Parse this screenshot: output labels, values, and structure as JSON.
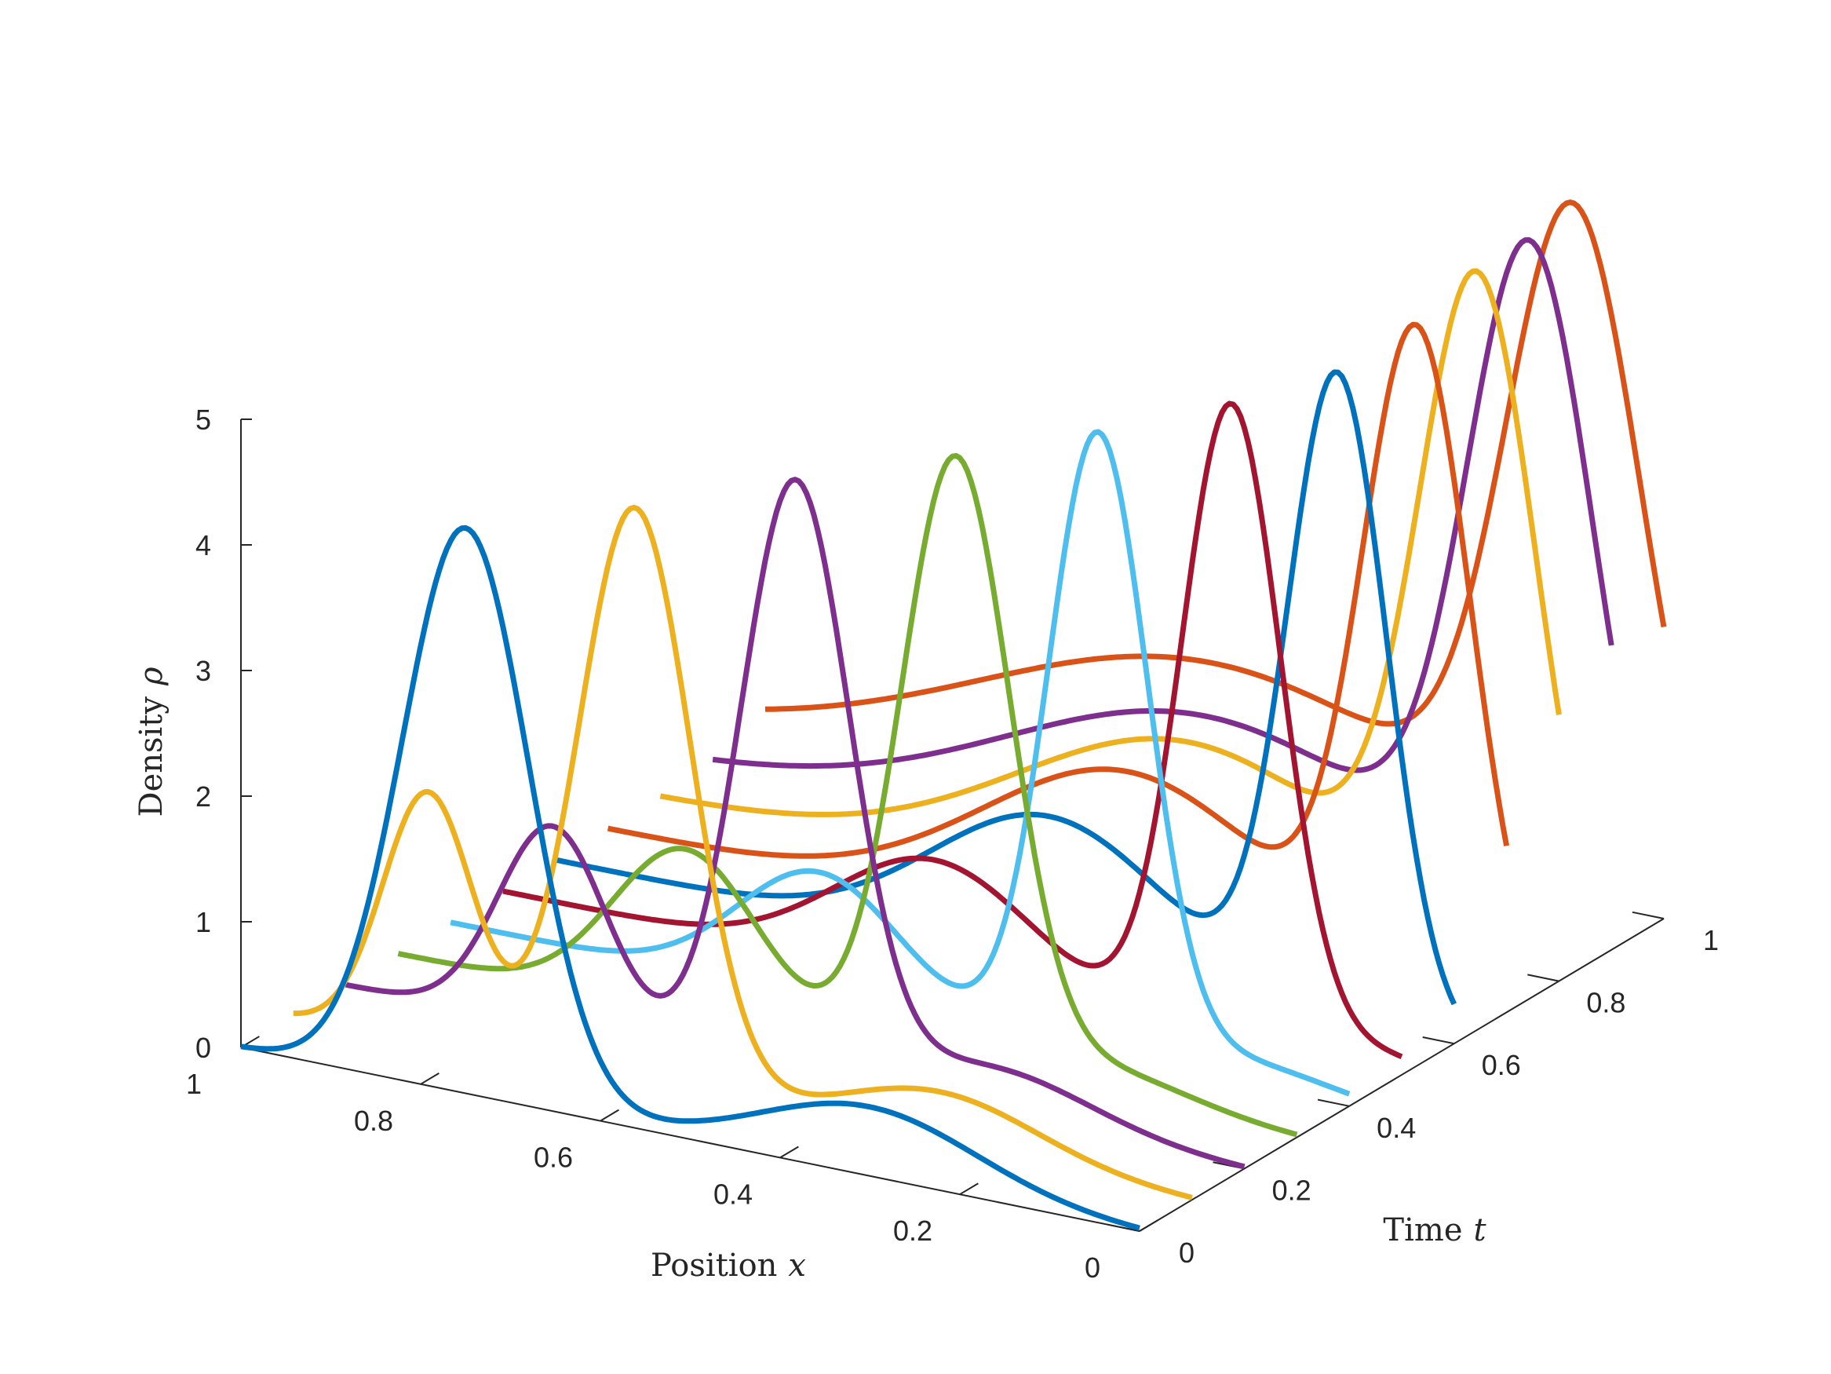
{
  "chart_data": {
    "type": "line",
    "subtype": "3d-waterfall",
    "title": "",
    "xlabel": "Position",
    "xlabel_var": "x",
    "ylabel": "Time",
    "ylabel_var": "t",
    "zlabel": "Density",
    "zlabel_var": "ρ",
    "xlim": [
      0,
      1
    ],
    "ylim": [
      0,
      1
    ],
    "zlim": [
      0,
      5
    ],
    "x_ticks": [
      "0",
      "0.2",
      "0.4",
      "0.6",
      "0.8",
      "1"
    ],
    "y_ticks": [
      "0",
      "0.2",
      "0.4",
      "0.6",
      "0.8",
      "1"
    ],
    "z_ticks": [
      "0",
      "1",
      "2",
      "3",
      "4",
      "5"
    ],
    "grid": false,
    "legend": "none",
    "colors": [
      "#0072BD",
      "#EDB120",
      "#7E2F8E",
      "#77AC30",
      "#4DBEEE",
      "#A2142F",
      "#0072BD",
      "#D95319",
      "#EDB120",
      "#7E2F8E",
      "#D95319"
    ],
    "series": [
      {
        "t": 0.0,
        "bumps": [
          {
            "a": 4.5,
            "mu": 0.75,
            "sigma": 0.07
          },
          {
            "a": 0.55,
            "mu": 0.3,
            "sigma": 0.12
          }
        ]
      },
      {
        "t": 0.1,
        "bumps": [
          {
            "a": 4.6,
            "mu": 0.62,
            "sigma": 0.062
          },
          {
            "a": 2.0,
            "mu": 0.85,
            "sigma": 0.05
          },
          {
            "a": 0.45,
            "mu": 0.28,
            "sigma": 0.11
          }
        ]
      },
      {
        "t": 0.2,
        "bumps": [
          {
            "a": 4.7,
            "mu": 0.5,
            "sigma": 0.06
          },
          {
            "a": 1.6,
            "mu": 0.77,
            "sigma": 0.06
          },
          {
            "a": 0.4,
            "mu": 0.28,
            "sigma": 0.11
          }
        ]
      },
      {
        "t": 0.3,
        "bumps": [
          {
            "a": 4.8,
            "mu": 0.38,
            "sigma": 0.06
          },
          {
            "a": 1.3,
            "mu": 0.68,
            "sigma": 0.08
          },
          {
            "a": 0.25,
            "mu": 0.22,
            "sigma": 0.1
          }
        ]
      },
      {
        "t": 0.4,
        "bumps": [
          {
            "a": 4.9,
            "mu": 0.28,
            "sigma": 0.055
          },
          {
            "a": 1.0,
            "mu": 0.59,
            "sigma": 0.09
          },
          {
            "a": 0.2,
            "mu": 0.12,
            "sigma": 0.1
          }
        ]
      },
      {
        "t": 0.5,
        "bumps": [
          {
            "a": 5.0,
            "mu": 0.19,
            "sigma": 0.055
          },
          {
            "a": 0.95,
            "mu": 0.52,
            "sigma": 0.11
          },
          {
            "a": 0.15,
            "mu": 0.05,
            "sigma": 0.1
          }
        ]
      },
      {
        "t": 0.6,
        "bumps": [
          {
            "a": 5.1,
            "mu": 0.13,
            "sigma": 0.055
          },
          {
            "a": 1.15,
            "mu": 0.45,
            "sigma": 0.13
          }
        ]
      },
      {
        "t": 0.7,
        "bumps": [
          {
            "a": 5.15,
            "mu": 0.1,
            "sigma": 0.06
          },
          {
            "a": 1.3,
            "mu": 0.42,
            "sigma": 0.16
          }
        ]
      },
      {
        "t": 0.8,
        "bumps": [
          {
            "a": 5.2,
            "mu": 0.09,
            "sigma": 0.065
          },
          {
            "a": 1.3,
            "mu": 0.41,
            "sigma": 0.19
          }
        ]
      },
      {
        "t": 0.9,
        "bumps": [
          {
            "a": 5.2,
            "mu": 0.09,
            "sigma": 0.07
          },
          {
            "a": 1.2,
            "mu": 0.45,
            "sigma": 0.22
          }
        ]
      },
      {
        "t": 1.0,
        "bumps": [
          {
            "a": 5.15,
            "mu": 0.1,
            "sigma": 0.075
          },
          {
            "a": 1.3,
            "mu": 0.5,
            "sigma": 0.26
          }
        ]
      }
    ]
  }
}
